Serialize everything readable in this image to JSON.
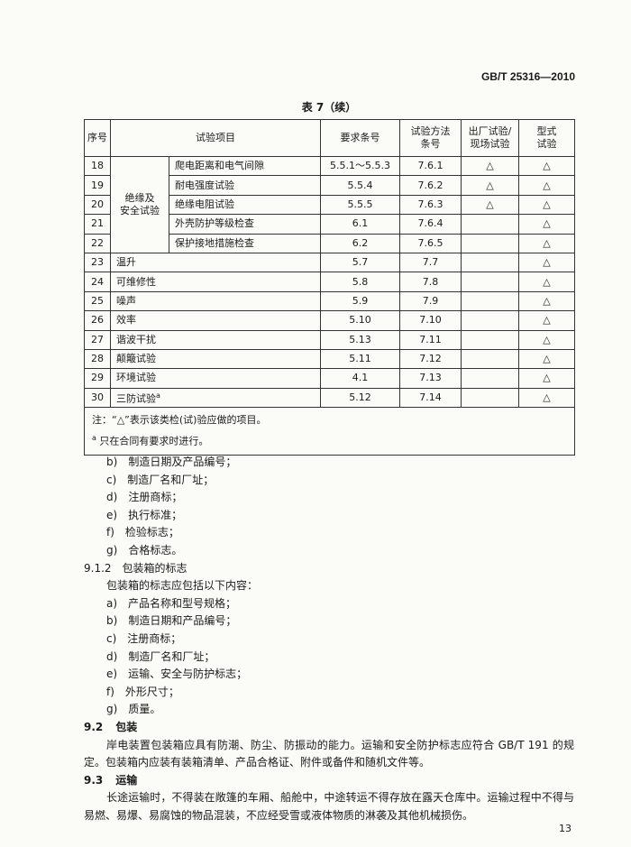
{
  "header": {
    "standard": "GB/T 25316—2010"
  },
  "table": {
    "caption": "表 7（续）",
    "columns": {
      "no": "序号",
      "item": "试验项目",
      "req": "要求条号",
      "method": [
        "试验方法",
        "条号"
      ],
      "factory": [
        "出厂试验/",
        "现场试验"
      ],
      "type": [
        "型式",
        "试验"
      ]
    },
    "group": [
      "绝缘及",
      "安全试验"
    ],
    "rows": [
      {
        "no": "18",
        "item": "爬电距离和电气间隙",
        "req": "5.5.1～5.5.3",
        "method": "7.6.1",
        "factory": "△",
        "type": "△"
      },
      {
        "no": "19",
        "item": "耐电强度试验",
        "req": "5.5.4",
        "method": "7.6.2",
        "factory": "△",
        "type": "△"
      },
      {
        "no": "20",
        "item": "绝缘电阻试验",
        "req": "5.5.5",
        "method": "7.6.3",
        "factory": "△",
        "type": "△"
      },
      {
        "no": "21",
        "item": "外壳防护等级检查",
        "req": "6.1",
        "method": "7.6.4",
        "type": "△"
      },
      {
        "no": "22",
        "item": "保护接地措施检查",
        "req": "6.2",
        "method": "7.6.5",
        "type": "△"
      },
      {
        "no": "23",
        "item": "温升",
        "req": "5.7",
        "method": "7.7",
        "type": "△"
      },
      {
        "no": "24",
        "item": "可维修性",
        "req": "5.8",
        "method": "7.8",
        "type": "△"
      },
      {
        "no": "25",
        "item": "噪声",
        "req": "5.9",
        "method": "7.9",
        "type": "△"
      },
      {
        "no": "26",
        "item": "效率",
        "req": "5.10",
        "method": "7.10",
        "type": "△"
      },
      {
        "no": "27",
        "item": "谐波干扰",
        "req": "5.13",
        "method": "7.11",
        "type": "△"
      },
      {
        "no": "28",
        "item": "颠簸试验",
        "req": "5.11",
        "method": "7.12",
        "type": "△"
      },
      {
        "no": "29",
        "item": "环境试验",
        "req": "4.1",
        "method": "7.13",
        "type": "△"
      },
      {
        "no": "30",
        "item": "三防试验",
        "mark": "a",
        "req": "5.12",
        "method": "7.14",
        "type": "△"
      }
    ],
    "notes": [
      "注：“△”表示该类检(试)验应做的项目。",
      {
        "mark": "a",
        "text": " 只在合同有要求时进行。"
      }
    ]
  },
  "list1": [
    [
      "b)",
      "制造日期及产品编号；"
    ],
    [
      "c)",
      "制造厂名和厂址；"
    ],
    [
      "d)",
      "注册商标；"
    ],
    [
      "e)",
      "执行标准；"
    ],
    [
      "f)",
      "检验标志；"
    ],
    [
      "g)",
      "合格标志。"
    ]
  ],
  "section_912": {
    "number": "9.1.2",
    "title": "包装箱的标志",
    "intro": "包装箱的标志应包括以下内容：",
    "items": [
      [
        "a)",
        "产品名称和型号规格；"
      ],
      [
        "b)",
        "制造日期和产品编号；"
      ],
      [
        "c)",
        "注册商标；"
      ],
      [
        "d)",
        "制造厂名和厂址；"
      ],
      [
        "e)",
        "运输、安全与防护标志；"
      ],
      [
        "f)",
        "外形尺寸；"
      ],
      [
        "g)",
        "质量。"
      ]
    ]
  },
  "section_92": {
    "number": "9.2",
    "title": "包装",
    "lines": [
      "岸电装置包装箱应具有防潮、防尘、防振动的能力。运输和安全防护标志应符合 GB/T 191 的规",
      "定。包装箱内应装有装箱清单、产品合格证、附件或备件和随机文件等。"
    ]
  },
  "section_93": {
    "number": "9.3",
    "title": "运输",
    "lines": [
      "长途运输时，不得装在敞篷的车厢、船舱中，中途转运不得存放在露天仓库中。运输过程中不得与",
      "易燃、易爆、易腐蚀的物品混装，不应经受雪或液体物质的淋袭及其他机械损伤。"
    ]
  },
  "page_number": "13"
}
